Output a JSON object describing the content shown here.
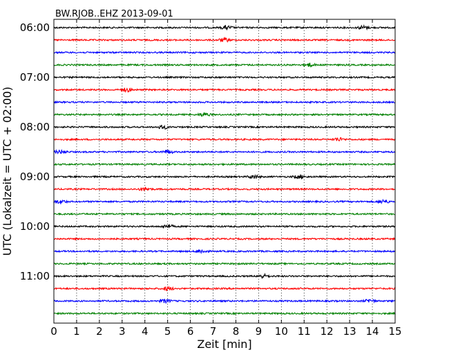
{
  "chart_data": {
    "type": "line",
    "title": "BW.RJOB..EHZ 2013-09-01",
    "xlabel": "Zeit  [min]",
    "ylabel": "UTC (Lokalzeit = UTC + 02:00)",
    "xlim": [
      0,
      15
    ],
    "x_ticks": [
      0,
      1,
      2,
      3,
      4,
      5,
      6,
      7,
      8,
      9,
      10,
      11,
      12,
      13,
      14,
      15
    ],
    "y_tick_labels": [
      "06:00",
      "07:00",
      "08:00",
      "09:00",
      "10:00",
      "11:00"
    ],
    "trace_interval_minutes": 15,
    "start_time": "06:00",
    "end_time": "12:00",
    "colors": [
      "#000000",
      "#ff0000",
      "#0000ff",
      "#008000"
    ],
    "grid": "vertical dotted",
    "series": [
      {
        "start": "06:00",
        "color": "#000000",
        "bursts": [
          7.6,
          13.6
        ]
      },
      {
        "start": "06:15",
        "color": "#ff0000",
        "bursts": [
          7.5
        ]
      },
      {
        "start": "06:30",
        "color": "#0000ff",
        "bursts": []
      },
      {
        "start": "06:45",
        "color": "#008000",
        "bursts": [
          11.2
        ]
      },
      {
        "start": "07:00",
        "color": "#000000",
        "bursts": []
      },
      {
        "start": "07:15",
        "color": "#ff0000",
        "bursts": [
          3.2
        ]
      },
      {
        "start": "07:30",
        "color": "#0000ff",
        "bursts": []
      },
      {
        "start": "07:45",
        "color": "#008000",
        "bursts": [
          6.6
        ]
      },
      {
        "start": "08:00",
        "color": "#000000",
        "bursts": [
          4.8
        ]
      },
      {
        "start": "08:15",
        "color": "#ff0000",
        "bursts": [
          12.5
        ]
      },
      {
        "start": "08:30",
        "color": "#0000ff",
        "bursts": [
          0.3,
          5.0
        ]
      },
      {
        "start": "08:45",
        "color": "#008000",
        "bursts": []
      },
      {
        "start": "09:00",
        "color": "#000000",
        "bursts": [
          8.8,
          10.8
        ]
      },
      {
        "start": "09:15",
        "color": "#ff0000",
        "bursts": [
          4.0
        ]
      },
      {
        "start": "09:30",
        "color": "#0000ff",
        "bursts": [
          0.3,
          14.5
        ]
      },
      {
        "start": "09:45",
        "color": "#008000",
        "bursts": []
      },
      {
        "start": "10:00",
        "color": "#000000",
        "bursts": [
          5.0
        ]
      },
      {
        "start": "10:15",
        "color": "#ff0000",
        "bursts": []
      },
      {
        "start": "10:30",
        "color": "#0000ff",
        "bursts": [
          6.5
        ]
      },
      {
        "start": "10:45",
        "color": "#008000",
        "bursts": []
      },
      {
        "start": "11:00",
        "color": "#000000",
        "bursts": [
          9.2
        ]
      },
      {
        "start": "11:15",
        "color": "#ff0000",
        "bursts": [
          5.0
        ]
      },
      {
        "start": "11:30",
        "color": "#0000ff",
        "bursts": [
          4.9,
          13.9
        ]
      },
      {
        "start": "11:45",
        "color": "#008000",
        "bursts": []
      }
    ]
  }
}
